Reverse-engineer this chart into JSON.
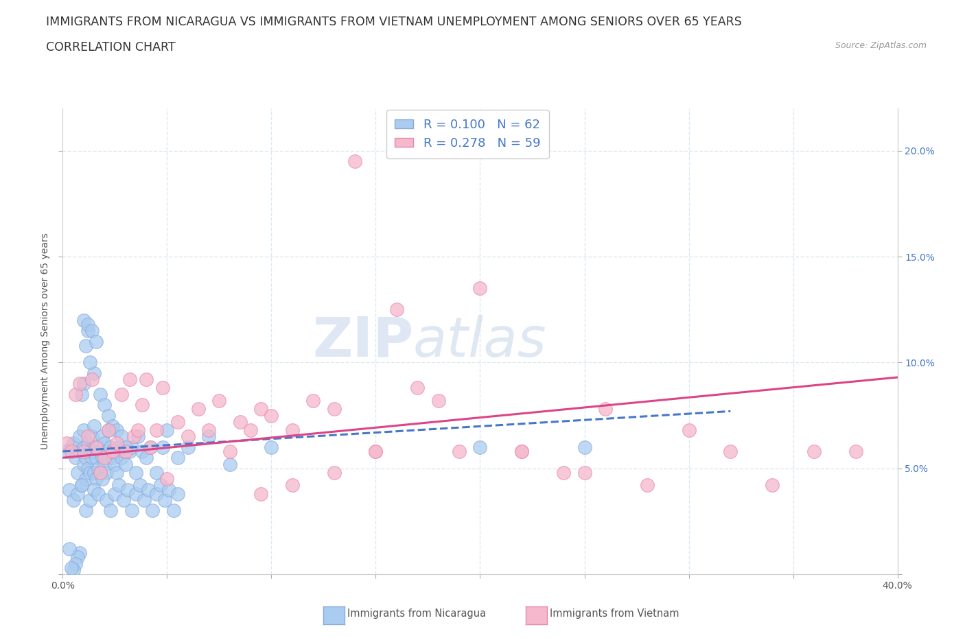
{
  "title_line1": "IMMIGRANTS FROM NICARAGUA VS IMMIGRANTS FROM VIETNAM UNEMPLOYMENT AMONG SENIORS OVER 65 YEARS",
  "title_line2": "CORRELATION CHART",
  "source_text": "Source: ZipAtlas.com",
  "ylabel": "Unemployment Among Seniors over 65 years",
  "xlim": [
    0.0,
    0.4
  ],
  "ylim": [
    0.0,
    0.22
  ],
  "yticks": [
    0.0,
    0.05,
    0.1,
    0.15,
    0.2
  ],
  "xticks": [
    0.0,
    0.05,
    0.1,
    0.15,
    0.2,
    0.25,
    0.3,
    0.35,
    0.4
  ],
  "ytick_labels_right": [
    "",
    "5.0%",
    "10.0%",
    "15.0%",
    "20.0%"
  ],
  "xtick_labels": [
    "0.0%",
    "",
    "",
    "",
    "",
    "",
    "",
    "",
    "40.0%"
  ],
  "nicaragua_color": "#aaccf0",
  "nicaragua_color_edge": "#88aadd",
  "vietnam_color": "#f5b8cc",
  "vietnam_color_edge": "#e888aa",
  "legend_r_nicaragua": "R = 0.100",
  "legend_n_nicaragua": "N = 62",
  "legend_r_vietnam": "R = 0.278",
  "legend_n_vietnam": "N = 59",
  "watermark_zip": "ZIP",
  "watermark_atlas": "atlas",
  "nicaragua_color_line": "#4477cc",
  "vietnam_color_line": "#dd4488",
  "background_color": "#ffffff",
  "grid_color": "#dde8f0",
  "title_fontsize": 12.5,
  "axis_label_fontsize": 10,
  "tick_fontsize": 10,
  "legend_fontsize": 12,
  "nicaragua_x": [
    0.002,
    0.004,
    0.005,
    0.006,
    0.007,
    0.008,
    0.008,
    0.009,
    0.01,
    0.01,
    0.01,
    0.011,
    0.011,
    0.012,
    0.012,
    0.013,
    0.013,
    0.014,
    0.014,
    0.015,
    0.015,
    0.015,
    0.016,
    0.016,
    0.017,
    0.017,
    0.018,
    0.018,
    0.019,
    0.019,
    0.02,
    0.02,
    0.021,
    0.021,
    0.022,
    0.022,
    0.023,
    0.024,
    0.025,
    0.025,
    0.026,
    0.027,
    0.028,
    0.029,
    0.03,
    0.032,
    0.033,
    0.035,
    0.036,
    0.038,
    0.04,
    0.042,
    0.045,
    0.048,
    0.05,
    0.055,
    0.06,
    0.07,
    0.08,
    0.1,
    0.2,
    0.25
  ],
  "nicaragua_y": [
    0.058,
    0.06,
    0.062,
    0.055,
    0.048,
    0.065,
    0.058,
    0.042,
    0.068,
    0.052,
    0.06,
    0.045,
    0.055,
    0.05,
    0.062,
    0.058,
    0.048,
    0.055,
    0.065,
    0.048,
    0.058,
    0.07,
    0.055,
    0.045,
    0.06,
    0.05,
    0.048,
    0.058,
    0.055,
    0.065,
    0.052,
    0.062,
    0.058,
    0.048,
    0.055,
    0.068,
    0.06,
    0.055,
    0.058,
    0.052,
    0.048,
    0.06,
    0.055,
    0.058,
    0.052,
    0.058,
    0.06,
    0.048,
    0.065,
    0.058,
    0.055,
    0.06,
    0.048,
    0.06,
    0.068,
    0.055,
    0.06,
    0.065,
    0.052,
    0.06,
    0.06,
    0.06
  ],
  "nicaragua_extra_x": [
    0.003,
    0.005,
    0.007,
    0.009,
    0.011,
    0.013,
    0.015,
    0.017,
    0.019,
    0.021,
    0.023,
    0.025,
    0.027,
    0.029,
    0.031,
    0.033,
    0.035,
    0.037,
    0.039,
    0.041,
    0.043,
    0.045,
    0.047,
    0.049,
    0.051,
    0.053,
    0.055,
    0.015,
    0.013,
    0.012,
    0.011,
    0.01,
    0.009,
    0.008,
    0.007,
    0.006,
    0.005,
    0.004,
    0.003,
    0.01,
    0.012,
    0.014,
    0.016,
    0.018,
    0.02,
    0.022,
    0.024,
    0.026,
    0.028,
    0.03
  ],
  "nicaragua_extra_y": [
    0.04,
    0.035,
    0.038,
    0.042,
    0.03,
    0.035,
    0.04,
    0.038,
    0.045,
    0.035,
    0.03,
    0.038,
    0.042,
    0.035,
    0.04,
    0.03,
    0.038,
    0.042,
    0.035,
    0.04,
    0.03,
    0.038,
    0.042,
    0.035,
    0.04,
    0.03,
    0.038,
    0.095,
    0.1,
    0.115,
    0.108,
    0.09,
    0.085,
    0.01,
    0.008,
    0.005,
    0.002,
    0.003,
    0.012,
    0.12,
    0.118,
    0.115,
    0.11,
    0.085,
    0.08,
    0.075,
    0.07,
    0.068,
    0.065,
    0.06
  ],
  "vietnam_x": [
    0.002,
    0.004,
    0.006,
    0.008,
    0.01,
    0.012,
    0.014,
    0.016,
    0.018,
    0.02,
    0.022,
    0.024,
    0.026,
    0.028,
    0.03,
    0.032,
    0.034,
    0.036,
    0.038,
    0.04,
    0.042,
    0.045,
    0.048,
    0.05,
    0.055,
    0.06,
    0.065,
    0.07,
    0.075,
    0.08,
    0.085,
    0.09,
    0.095,
    0.1,
    0.11,
    0.12,
    0.13,
    0.14,
    0.15,
    0.16,
    0.18,
    0.2,
    0.22,
    0.25,
    0.28,
    0.3,
    0.32,
    0.34,
    0.36,
    0.38,
    0.22,
    0.24,
    0.26,
    0.19,
    0.17,
    0.15,
    0.13,
    0.11,
    0.095
  ],
  "vietnam_y": [
    0.062,
    0.058,
    0.085,
    0.09,
    0.058,
    0.065,
    0.092,
    0.06,
    0.048,
    0.055,
    0.068,
    0.058,
    0.062,
    0.085,
    0.058,
    0.092,
    0.065,
    0.068,
    0.08,
    0.092,
    0.06,
    0.068,
    0.088,
    0.045,
    0.072,
    0.065,
    0.078,
    0.068,
    0.082,
    0.058,
    0.072,
    0.068,
    0.078,
    0.075,
    0.068,
    0.082,
    0.078,
    0.195,
    0.058,
    0.125,
    0.082,
    0.135,
    0.058,
    0.048,
    0.042,
    0.068,
    0.058,
    0.042,
    0.058,
    0.058,
    0.058,
    0.048,
    0.078,
    0.058,
    0.088,
    0.058,
    0.048,
    0.042,
    0.038
  ],
  "nicaragua_trend_x": [
    0.0,
    0.32
  ],
  "nicaragua_trend_y": [
    0.058,
    0.077
  ],
  "vietnam_trend_x": [
    0.0,
    0.4
  ],
  "vietnam_trend_y": [
    0.055,
    0.093
  ]
}
